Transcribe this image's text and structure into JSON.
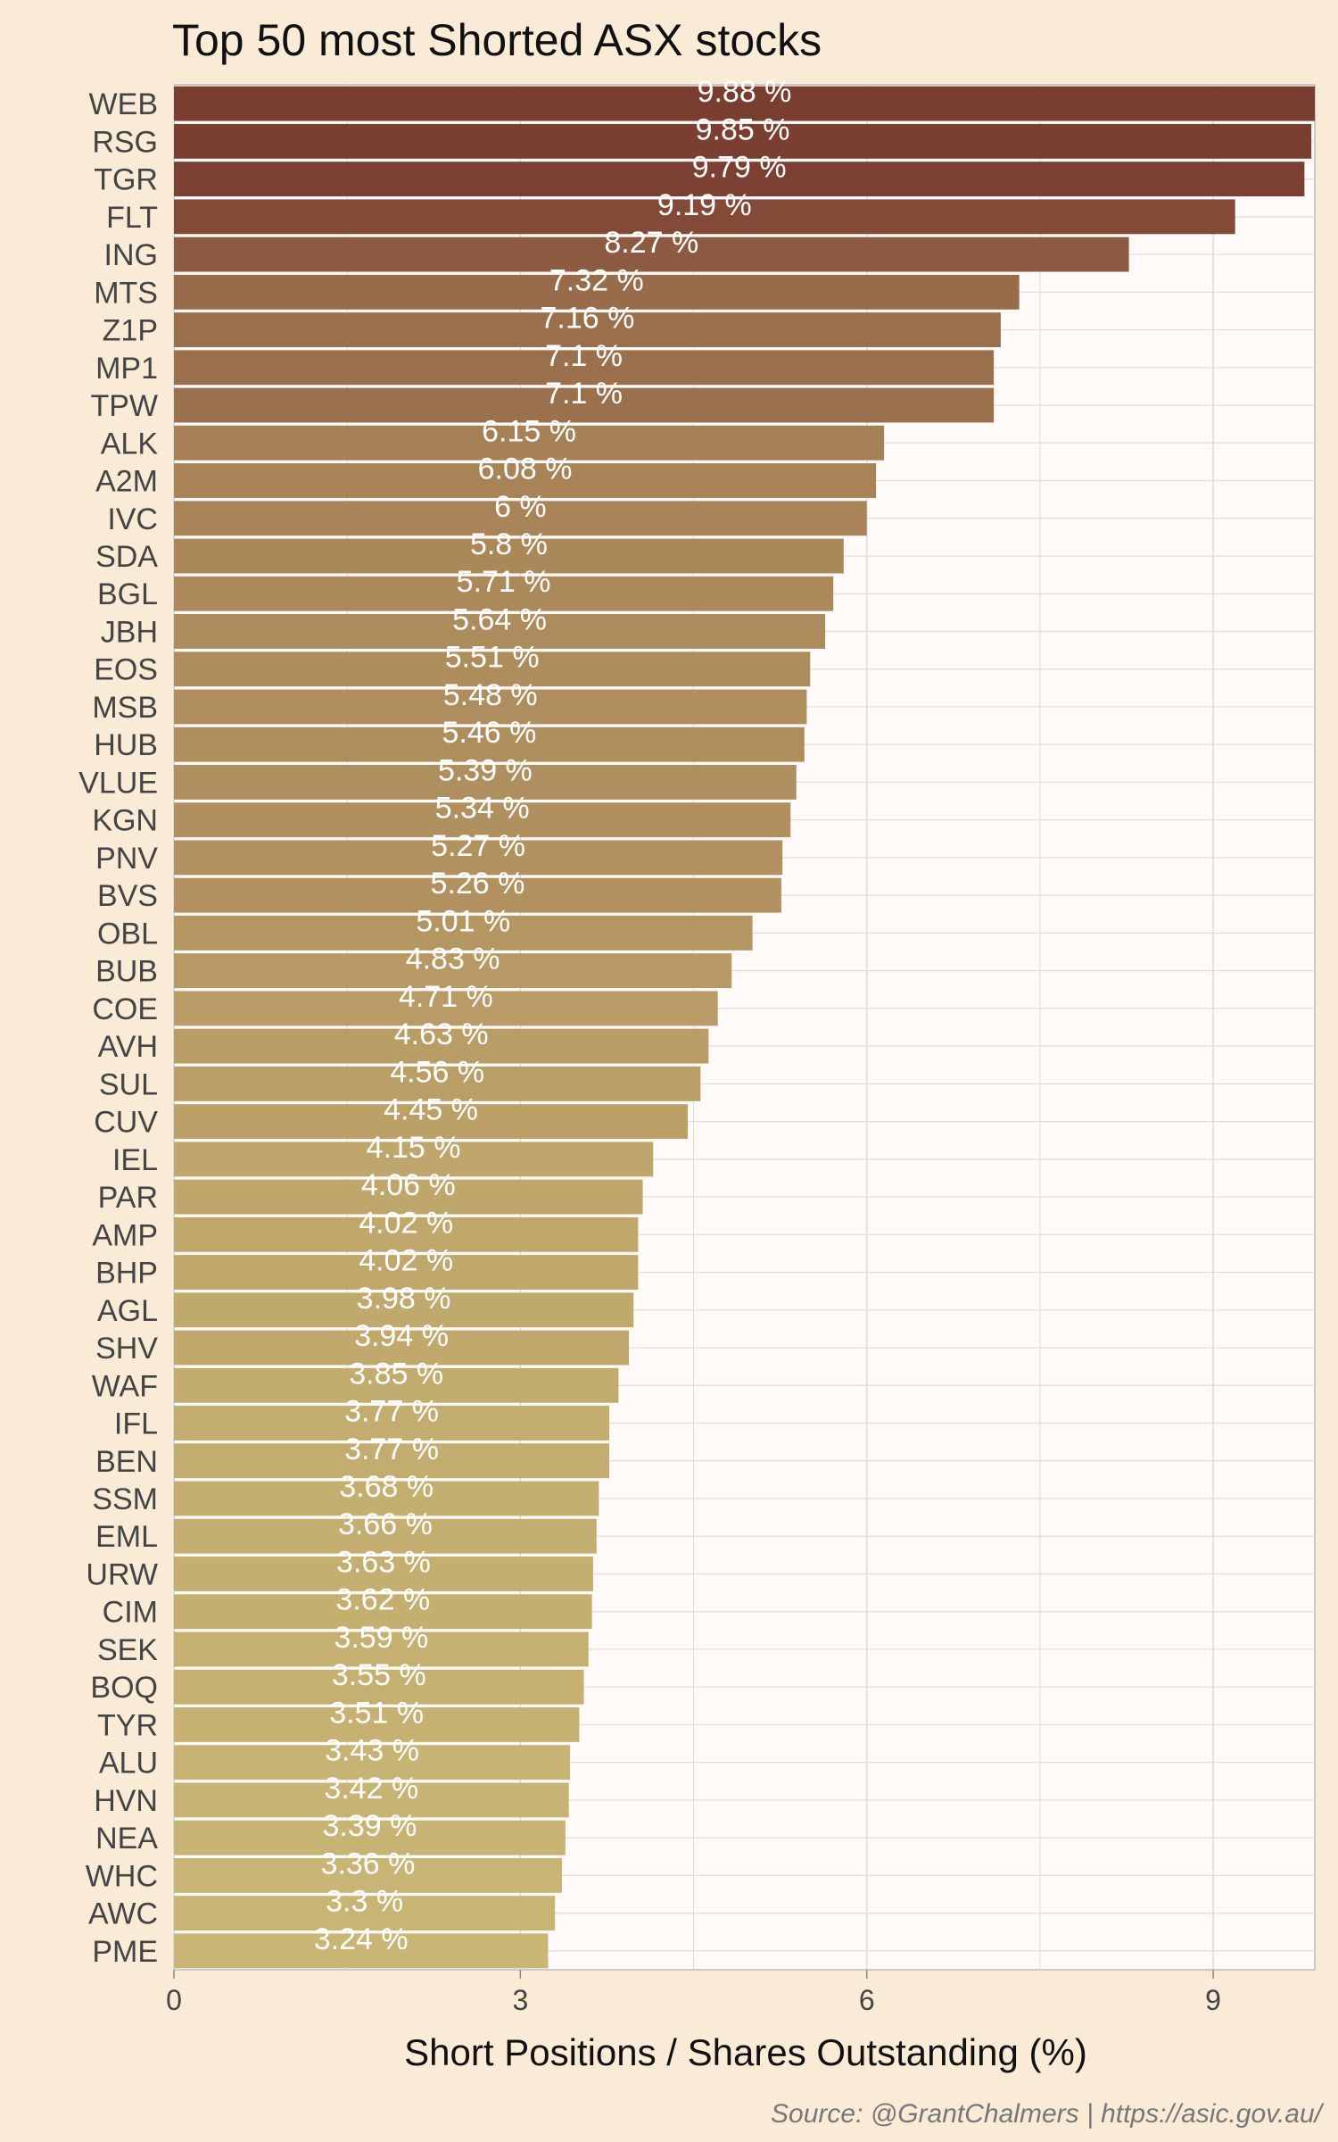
{
  "chart_data": {
    "type": "bar",
    "orientation": "horizontal",
    "title": "Top 50 most Shorted ASX stocks",
    "xlabel": "Short Positions / Shares Outstanding (%)",
    "ylabel": "",
    "caption": "Source: @GrantChalmers | https://asic.gov.au/",
    "value_suffix": " %",
    "xlim": [
      0,
      9.88
    ],
    "xticks": [
      0,
      3,
      6,
      9
    ],
    "grid": true,
    "legend": "none",
    "color_scale": [
      "#7A3E30",
      "#C9B675"
    ],
    "categories": [
      "WEB",
      "RSG",
      "TGR",
      "FLT",
      "ING",
      "MTS",
      "Z1P",
      "MP1",
      "TPW",
      "ALK",
      "A2M",
      "IVC",
      "SDA",
      "BGL",
      "JBH",
      "EOS",
      "MSB",
      "HUB",
      "VLUE",
      "KGN",
      "PNV",
      "BVS",
      "OBL",
      "BUB",
      "COE",
      "AVH",
      "SUL",
      "CUV",
      "IEL",
      "PAR",
      "AMP",
      "BHP",
      "AGL",
      "SHV",
      "WAF",
      "IFL",
      "BEN",
      "SSM",
      "EML",
      "URW",
      "CIM",
      "SEK",
      "BOQ",
      "TYR",
      "ALU",
      "HVN",
      "NEA",
      "WHC",
      "AWC",
      "PME"
    ],
    "values": [
      9.88,
      9.85,
      9.79,
      9.19,
      8.27,
      7.32,
      7.16,
      7.1,
      7.1,
      6.15,
      6.08,
      6,
      5.8,
      5.71,
      5.64,
      5.51,
      5.48,
      5.46,
      5.39,
      5.34,
      5.27,
      5.26,
      5.01,
      4.83,
      4.71,
      4.63,
      4.56,
      4.45,
      4.15,
      4.06,
      4.02,
      4.02,
      3.98,
      3.94,
      3.85,
      3.77,
      3.77,
      3.68,
      3.66,
      3.63,
      3.62,
      3.59,
      3.55,
      3.51,
      3.43,
      3.42,
      3.39,
      3.36,
      3.3,
      3.24
    ],
    "value_labels": [
      "9.88 %",
      "9.85 %",
      "9.79 %",
      "9.19 %",
      "8.27 %",
      "7.32 %",
      "7.16 %",
      "7.1 %",
      "7.1 %",
      "6.15 %",
      "6.08 %",
      "6 %",
      "5.8 %",
      "5.71 %",
      "5.64 %",
      "5.51 %",
      "5.48 %",
      "5.46 %",
      "5.39 %",
      "5.34 %",
      "5.27 %",
      "5.26 %",
      "5.01 %",
      "4.83 %",
      "4.71 %",
      "4.63 %",
      "4.56 %",
      "4.45 %",
      "4.15 %",
      "4.06 %",
      "4.02 %",
      "4.02 %",
      "3.98 %",
      "3.94 %",
      "3.85 %",
      "3.77 %",
      "3.77 %",
      "3.68 %",
      "3.66 %",
      "3.63 %",
      "3.62 %",
      "3.59 %",
      "3.55 %",
      "3.51 %",
      "3.43 %",
      "3.42 %",
      "3.39 %",
      "3.36 %",
      "3.3 %",
      "3.24 %"
    ]
  },
  "colors": {
    "page_background": "#FAEBD7",
    "panel_background": "#FFFAF7",
    "grid": "#DDDDDD",
    "axis_text": "#444444"
  }
}
